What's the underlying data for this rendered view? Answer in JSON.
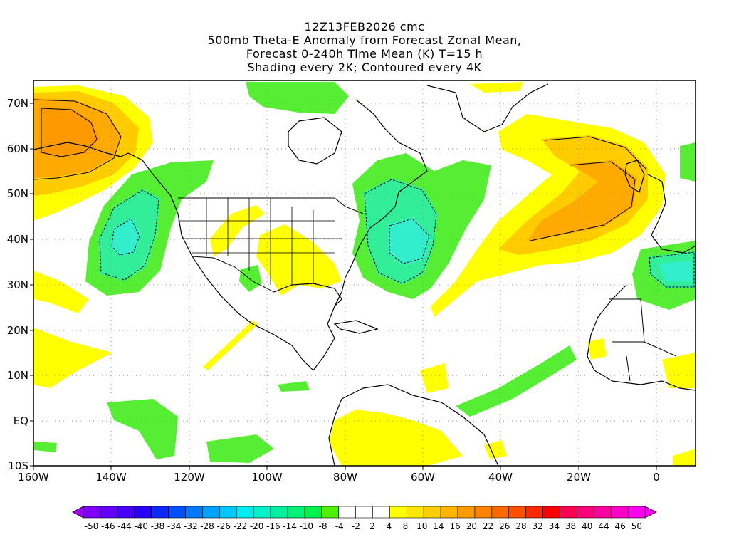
{
  "title_lines": [
    "12Z13FEB2026 cmc",
    "500mb Theta-E Anomaly from Forecast Zonal Mean,",
    "Forecast 0-240h Time Mean (K) T=15 h",
    "Shading every 2K; Contoured every 4K"
  ],
  "y_ticks": [
    "70N",
    "60N",
    "50N",
    "40N",
    "30N",
    "20N",
    "10N",
    "EQ",
    "10S"
  ],
  "x_ticks": [
    "160W",
    "140W",
    "120W",
    "100W",
    "80W",
    "60W",
    "40W",
    "20W",
    "0"
  ],
  "colorbar_labels": [
    "-50",
    "-46",
    "-44",
    "-40",
    "-38",
    "-34",
    "-32",
    "-28",
    "-26",
    "-22",
    "-20",
    "-16",
    "-14",
    "-10",
    "-8",
    "-4",
    "-2",
    "2",
    "4",
    "8",
    "10",
    "14",
    "16",
    "20",
    "22",
    "26",
    "28",
    "32",
    "34",
    "38",
    "40",
    "44",
    "46",
    "50"
  ],
  "colorbar_colors": [
    "#a000ff",
    "#8000ff",
    "#6400ff",
    "#4600ff",
    "#2800ff",
    "#0a28ff",
    "#0050ff",
    "#0078ff",
    "#00a0ff",
    "#00c8ff",
    "#00ebf0",
    "#00f0c8",
    "#00f0a0",
    "#00f078",
    "#00f050",
    "#50f000",
    "#ffffff",
    "#ffffff",
    "#ffffff",
    "#ffff00",
    "#ffe600",
    "#ffcd00",
    "#ffb400",
    "#ff9b00",
    "#ff8200",
    "#ff6900",
    "#ff5000",
    "#ff2800",
    "#ff0000",
    "#ff0050",
    "#ff0078",
    "#ff00a0",
    "#ff00c8",
    "#ff00f0",
    "#ff00ff"
  ],
  "colors": {
    "green": "#55ee33",
    "teal1": "#33ee99",
    "teal2": "#33eecc",
    "yellow": "#ffff00",
    "gold": "#ffcc00",
    "orange": "#ffaa00",
    "darkorange": "#ff9900"
  }
}
